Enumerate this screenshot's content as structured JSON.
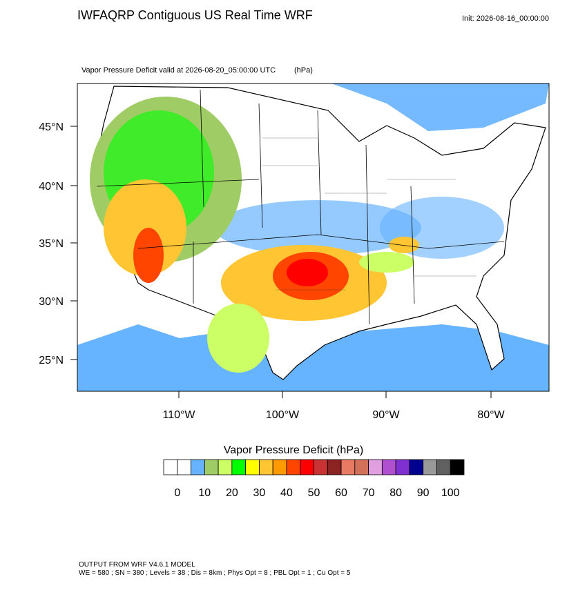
{
  "header": {
    "title": "IWFAQRP Contiguous US Real Time WRF",
    "init": "Init: 2026-08-16_00:00:00",
    "subtitle": "Vapor Pressure Deficit valid at 2026-08-20_05:00:00 UTC",
    "subtitle_units": "(hPa)"
  },
  "map": {
    "lat_labels": [
      "45°N",
      "40°N",
      "35°N",
      "30°N",
      "25°N"
    ],
    "lon_labels": [
      "110°W",
      "100°W",
      "90°W",
      "80°W"
    ]
  },
  "colorbar": {
    "title": "Vapor Pressure Deficit  (hPa)",
    "lim": [
      -5,
      105
    ],
    "ticks": [
      0,
      10,
      20,
      30,
      40,
      50,
      60,
      70,
      80,
      90,
      100
    ],
    "colors": [
      "#ffffff",
      "#ffffff",
      "#66b3ff",
      "#a0cc66",
      "#ccff66",
      "#00ff00",
      "#ffff00",
      "#ffc533",
      "#ff9a00",
      "#ff4500",
      "#ff0000",
      "#c83232",
      "#8b2323",
      "#e87a64",
      "#d2705a",
      "#e0a0e0",
      "#b050d0",
      "#8030d0",
      "#000090",
      "#999999",
      "#606060",
      "#000000"
    ]
  },
  "footer": {
    "line1": "OUTPUT FROM WRF V4.6.1 MODEL",
    "line2": "WE = 580 ; SN = 380 ; Levels = 38 ; Dis = 8km ; Phys Opt = 8 ; PBL Opt = 1 ; Cu Opt = 5"
  }
}
